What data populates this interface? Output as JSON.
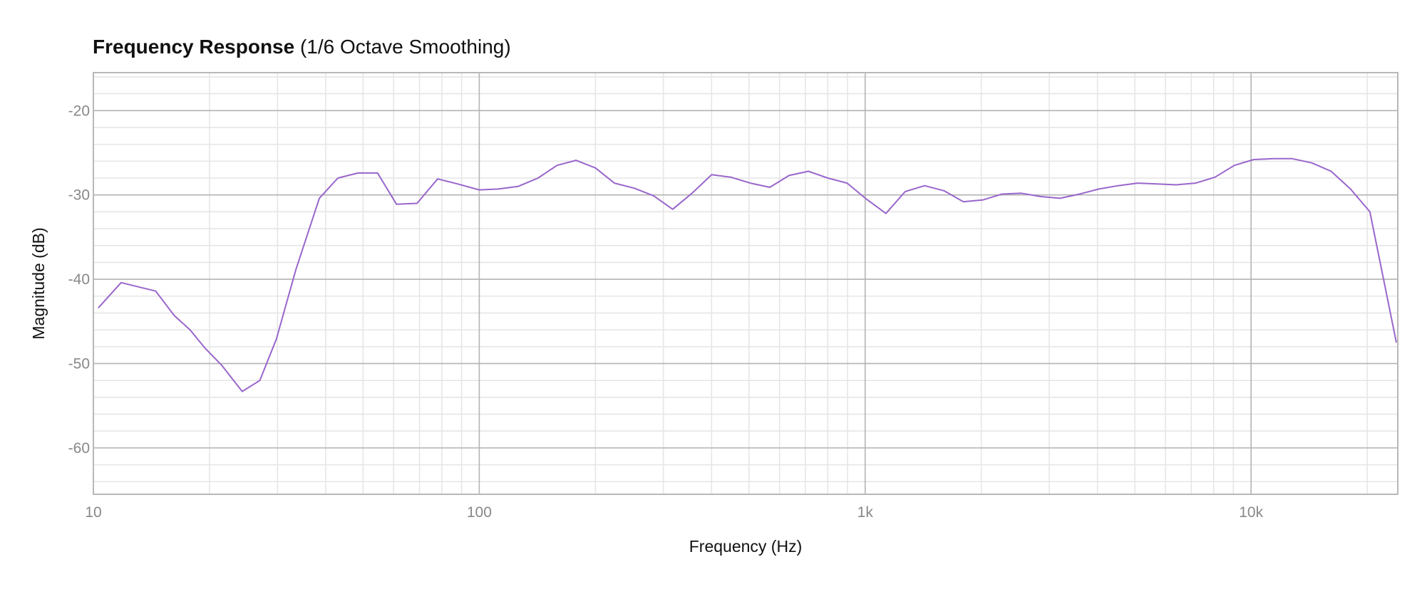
{
  "chart_data": {
    "type": "line",
    "title": "Frequency Response",
    "subtitle": "(1/6 Octave Smoothing)",
    "xlabel": "Frequency (Hz)",
    "ylabel": "Magnitude (dB)",
    "x_scale": "log",
    "xlim": [
      10,
      24000
    ],
    "ylim": [
      -65.5,
      -15.5
    ],
    "x_ticks": [
      {
        "value": 10,
        "label": "10"
      },
      {
        "value": 100,
        "label": "100"
      },
      {
        "value": 1000,
        "label": "1k"
      },
      {
        "value": 10000,
        "label": "10k"
      }
    ],
    "y_ticks": [
      {
        "value": -20,
        "label": "-20"
      },
      {
        "value": -30,
        "label": "-30"
      },
      {
        "value": -40,
        "label": "-40"
      },
      {
        "value": -50,
        "label": "-50"
      },
      {
        "value": -60,
        "label": "-60"
      }
    ],
    "grid": true,
    "legend": "none",
    "colors": {
      "line": "#9966cc",
      "grid_major": "#b3b3b3",
      "grid_minor": "#e6e6e6",
      "frame": "#b8b8b8"
    },
    "series": [
      {
        "color": "#9966cc",
        "x": [
          10.3,
          11.8,
          14.5,
          16.2,
          17.8,
          19.5,
          21.5,
          24.3,
          27.0,
          29.8,
          33.5,
          38.5,
          43.0,
          48.5,
          54.5,
          61.0,
          69.0,
          78.0,
          88.0,
          100.0,
          112.0,
          126.0,
          142.0,
          159.0,
          178.0,
          200.0,
          224.0,
          252.0,
          283.0,
          317.0,
          356.0,
          400.0,
          449.0,
          504.0,
          566.0,
          635.0,
          713.0,
          800.0,
          898.0,
          1008.0,
          1132.0,
          1270.0,
          1426.0,
          1600.0,
          1796.0,
          2016.0,
          2263.0,
          2540.0,
          2851.0,
          3200.0,
          3592.0,
          4032.0,
          4525.0,
          5080.0,
          5702.0,
          6400.0,
          7184.0,
          8063.0,
          9051.0,
          10160.0,
          11404.0,
          12800.0,
          14368.0,
          16127.0,
          18102.0,
          20319.0,
          23800.0
        ],
        "y": [
          -43.4,
          -40.4,
          -41.4,
          -44.3,
          -46.0,
          -48.2,
          -50.2,
          -53.3,
          -52.0,
          -47.1,
          -38.8,
          -30.4,
          -28.0,
          -27.4,
          -27.4,
          -31.1,
          -31.0,
          -28.1,
          -28.7,
          -29.4,
          -29.3,
          -29.0,
          -28.0,
          -26.5,
          -25.9,
          -26.8,
          -28.6,
          -29.2,
          -30.1,
          -31.7,
          -29.8,
          -27.6,
          -27.9,
          -28.6,
          -29.1,
          -27.7,
          -27.2,
          -28.0,
          -28.6,
          -30.5,
          -32.2,
          -29.6,
          -28.9,
          -29.5,
          -30.8,
          -30.6,
          -29.9,
          -29.8,
          -30.2,
          -30.4,
          -29.9,
          -29.3,
          -28.9,
          -28.6,
          -28.7,
          -28.8,
          -28.6,
          -27.9,
          -26.5,
          -25.8,
          -25.7,
          -25.7,
          -26.2,
          -27.2,
          -29.3,
          -32.0,
          -47.5
        ]
      }
    ]
  }
}
